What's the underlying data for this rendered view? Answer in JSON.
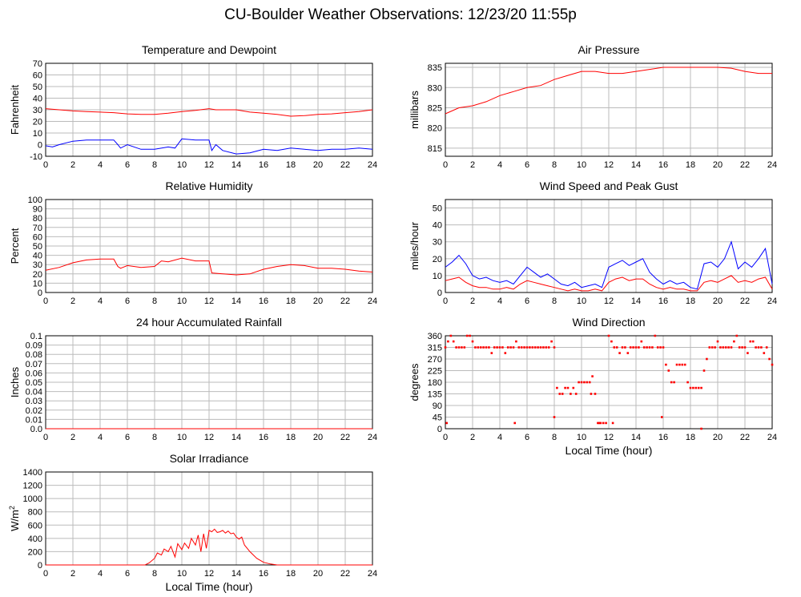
{
  "page": {
    "title": "CU-Boulder Weather Observations: 12/23/20 11:55p"
  },
  "chart_data": [
    {
      "id": "temperature",
      "type": "line",
      "title": "Temperature and Dewpoint",
      "xlabel": "",
      "ylabel": "Fahrenheit",
      "xlim": [
        0,
        24
      ],
      "ylim": [
        -10,
        70
      ],
      "xticks": [
        "0",
        "2",
        "4",
        "6",
        "8",
        "10",
        "12",
        "14",
        "16",
        "18",
        "20",
        "22",
        "24"
      ],
      "yticks": [
        "-10",
        "0",
        "10",
        "20",
        "30",
        "40",
        "50",
        "60",
        "70"
      ],
      "grid": true,
      "series": [
        {
          "color": "#ff0000",
          "x": [
            0,
            1,
            2,
            3,
            4,
            5,
            6,
            7,
            8,
            9,
            10,
            11,
            12,
            12.5,
            13,
            14,
            15,
            16,
            17,
            18,
            19,
            20,
            21,
            22,
            23,
            24
          ],
          "y": [
            31,
            30,
            29,
            28.5,
            28,
            27.5,
            26.5,
            26,
            26,
            27,
            28.5,
            29.5,
            31,
            30,
            30,
            30,
            28,
            27,
            26,
            24.5,
            25,
            26,
            26.5,
            27.5,
            28.5,
            30
          ]
        },
        {
          "color": "#0000ff",
          "x": [
            0,
            0.5,
            1,
            2,
            3,
            4,
            5,
            5.3,
            5.5,
            6,
            7,
            8,
            9,
            9.5,
            10,
            11,
            12,
            12.2,
            12.5,
            13,
            14,
            15,
            16,
            17,
            18,
            19,
            20,
            21,
            22,
            23,
            24
          ],
          "y": [
            -1,
            -2,
            0,
            3,
            4,
            4,
            4,
            0,
            -3,
            0,
            -4,
            -4,
            -2,
            -3,
            5,
            4,
            4,
            -5,
            0,
            -5,
            -8,
            -7,
            -4,
            -5,
            -3,
            -4,
            -5,
            -4,
            -4,
            -3,
            -4
          ]
        }
      ]
    },
    {
      "id": "pressure",
      "type": "line",
      "title": "Air Pressure",
      "xlabel": "",
      "ylabel": "millibars",
      "xlim": [
        0,
        24
      ],
      "ylim": [
        813,
        836
      ],
      "xticks": [
        "0",
        "2",
        "4",
        "6",
        "8",
        "10",
        "12",
        "14",
        "16",
        "18",
        "20",
        "22",
        "24"
      ],
      "yticks": [
        "815",
        "820",
        "825",
        "830",
        "835"
      ],
      "grid": true,
      "series": [
        {
          "color": "#ff0000",
          "x": [
            0,
            1,
            2,
            3,
            4,
            5,
            6,
            7,
            8,
            9,
            10,
            11,
            12,
            13,
            14,
            15,
            16,
            17,
            18,
            19,
            20,
            21,
            22,
            23,
            24
          ],
          "y": [
            823.5,
            825,
            825.5,
            826.5,
            828,
            829,
            830,
            830.5,
            832,
            833,
            834,
            834,
            833.5,
            833.5,
            834,
            834.5,
            835,
            835,
            835,
            835,
            835,
            834.8,
            834,
            833.5,
            833.5
          ]
        }
      ]
    },
    {
      "id": "humidity",
      "type": "line",
      "title": "Relative Humidity",
      "xlabel": "",
      "ylabel": "Percent",
      "xlim": [
        0,
        24
      ],
      "ylim": [
        0,
        100
      ],
      "xticks": [
        "0",
        "2",
        "4",
        "6",
        "8",
        "10",
        "12",
        "14",
        "16",
        "18",
        "20",
        "22",
        "24"
      ],
      "yticks": [
        "0",
        "10",
        "20",
        "30",
        "40",
        "50",
        "60",
        "70",
        "80",
        "90",
        "100"
      ],
      "grid": true,
      "series": [
        {
          "color": "#ff0000",
          "x": [
            0,
            1,
            2,
            3,
            4,
            5,
            5.3,
            5.5,
            6,
            7,
            8,
            8.5,
            9,
            10,
            11,
            12,
            12.2,
            13,
            14,
            15,
            16,
            17,
            18,
            19,
            20,
            21,
            22,
            23,
            24
          ],
          "y": [
            24,
            27,
            32,
            35,
            36,
            36,
            28,
            26,
            29,
            27,
            28,
            34,
            33,
            37,
            34,
            34,
            21,
            20,
            19,
            20,
            25,
            28,
            30,
            29,
            26,
            26,
            25,
            23,
            22
          ]
        }
      ]
    },
    {
      "id": "wind-speed",
      "type": "line",
      "title": "Wind Speed and Peak Gust",
      "xlabel": "",
      "ylabel": "miles/hour",
      "xlim": [
        0,
        24
      ],
      "ylim": [
        0,
        55
      ],
      "xticks": [
        "0",
        "2",
        "4",
        "6",
        "8",
        "10",
        "12",
        "14",
        "16",
        "18",
        "20",
        "22",
        "24"
      ],
      "yticks": [
        "0",
        "10",
        "20",
        "30",
        "40",
        "50"
      ],
      "grid": true,
      "series": [
        {
          "color": "#0000ff",
          "x": [
            0,
            0.5,
            1,
            1.5,
            2,
            2.5,
            3,
            3.5,
            4,
            4.5,
            5,
            5.5,
            6,
            6.5,
            7,
            7.5,
            8,
            8.5,
            9,
            9.5,
            10,
            10.5,
            11,
            11.5,
            12,
            12.5,
            13,
            13.5,
            14,
            14.5,
            15,
            15.5,
            16,
            16.5,
            17,
            17.5,
            18,
            18.5,
            19,
            19.5,
            20,
            20.5,
            21,
            21.5,
            22,
            22.5,
            23,
            23.5,
            24
          ],
          "y": [
            15,
            18,
            22,
            17,
            10,
            8,
            9,
            7,
            6,
            7,
            5,
            10,
            15,
            12,
            9,
            11,
            8,
            5,
            4,
            6,
            3,
            4,
            5,
            3,
            15,
            17,
            19,
            16,
            18,
            20,
            12,
            8,
            5,
            7,
            5,
            6,
            3,
            2,
            17,
            18,
            15,
            20,
            30,
            14,
            18,
            15,
            20,
            26,
            5
          ]
        },
        {
          "color": "#ff0000",
          "x": [
            0,
            0.5,
            1,
            1.5,
            2,
            2.5,
            3,
            3.5,
            4,
            4.5,
            5,
            5.5,
            6,
            6.5,
            7,
            7.5,
            8,
            8.5,
            9,
            9.5,
            10,
            10.5,
            11,
            11.5,
            12,
            12.5,
            13,
            13.5,
            14,
            14.5,
            15,
            15.5,
            16,
            16.5,
            17,
            17.5,
            18,
            18.5,
            19,
            19.5,
            20,
            20.5,
            21,
            21.5,
            22,
            22.5,
            23,
            23.5,
            24
          ],
          "y": [
            7,
            8,
            9,
            6,
            4,
            3,
            3,
            2,
            2,
            3,
            2,
            5,
            7,
            6,
            5,
            4,
            3,
            2,
            1,
            2,
            1,
            1,
            2,
            1,
            6,
            8,
            9,
            7,
            8,
            8,
            5,
            3,
            2,
            3,
            2,
            2,
            1,
            1,
            6,
            7,
            6,
            8,
            10,
            6,
            7,
            6,
            8,
            9,
            2
          ]
        }
      ]
    },
    {
      "id": "rainfall",
      "type": "line",
      "title": "24 hour Accumulated Rainfall",
      "xlabel": "",
      "ylabel": "Inches",
      "xlim": [
        0,
        24
      ],
      "ylim": [
        0,
        0.1
      ],
      "xticks": [
        "0",
        "2",
        "4",
        "6",
        "8",
        "10",
        "12",
        "14",
        "16",
        "18",
        "20",
        "22",
        "24"
      ],
      "yticks": [
        "0.0",
        "0.01",
        "0.02",
        "0.03",
        "0.04",
        "0.05",
        "0.06",
        "0.07",
        "0.08",
        "0.09",
        "0.1"
      ],
      "grid": true,
      "series": [
        {
          "color": "#ff0000",
          "x": [
            0,
            24
          ],
          "y": [
            0,
            0
          ]
        }
      ]
    },
    {
      "id": "wind-direction",
      "type": "scatter",
      "title": "Wind Direction",
      "xlabel": "Local Time (hour)",
      "ylabel": "degrees",
      "xlim": [
        0,
        24
      ],
      "ylim": [
        0,
        360
      ],
      "xticks": [
        "0",
        "2",
        "4",
        "6",
        "8",
        "10",
        "12",
        "14",
        "16",
        "18",
        "20",
        "22",
        "24"
      ],
      "yticks": [
        "0",
        "45",
        "90",
        "135",
        "180",
        "225",
        "270",
        "315",
        "360"
      ],
      "grid": true,
      "series": [
        {
          "color": "#ff0000",
          "x": [
            0,
            0.2,
            0.4,
            0.6,
            0.8,
            1,
            1.2,
            1.4,
            1.6,
            1.8,
            2,
            2.2,
            2.4,
            2.6,
            2.8,
            3,
            3.2,
            3.4,
            3.6,
            3.8,
            4,
            4.2,
            4.4,
            4.6,
            4.8,
            5,
            5.2,
            5.4,
            5.6,
            5.8,
            6,
            6.2,
            6.4,
            6.6,
            6.8,
            7,
            7.2,
            7.4,
            7.6,
            7.8,
            8,
            8.2,
            8.4,
            8.6,
            8.8,
            9,
            9.2,
            9.4,
            9.6,
            9.8,
            10,
            10.2,
            10.4,
            10.6,
            10.8,
            11,
            11.2,
            11.4,
            11.6,
            11.8,
            12,
            12.2,
            12.4,
            12.6,
            12.8,
            13,
            13.2,
            13.4,
            13.6,
            13.8,
            14,
            14.2,
            14.4,
            14.6,
            14.8,
            15,
            15.2,
            15.4,
            15.6,
            15.8,
            16,
            16.2,
            16.4,
            16.6,
            16.8,
            17,
            17.2,
            17.4,
            17.6,
            17.8,
            18,
            18.2,
            18.4,
            18.6,
            18.8,
            19,
            19.2,
            19.4,
            19.6,
            19.8,
            20,
            20.2,
            20.4,
            20.6,
            20.8,
            21,
            21.2,
            21.4,
            21.6,
            21.8,
            22,
            22.2,
            22.4,
            22.6,
            22.8,
            23,
            23.2,
            23.4,
            23.6,
            23.8,
            24,
            0.1,
            5.1,
            8.0,
            10.7,
            11.3,
            12.3,
            15.9,
            18.8
          ],
          "y": [
            315,
            338,
            360,
            338,
            315,
            315,
            315,
            315,
            360,
            360,
            338,
            315,
            315,
            315,
            315,
            315,
            315,
            293,
            315,
            315,
            315,
            315,
            293,
            315,
            315,
            315,
            338,
            315,
            315,
            315,
            315,
            315,
            315,
            315,
            315,
            315,
            315,
            315,
            315,
            338,
            315,
            158,
            135,
            135,
            158,
            158,
            135,
            158,
            135,
            180,
            180,
            180,
            180,
            180,
            203,
            135,
            22,
            22,
            22,
            22,
            360,
            338,
            315,
            315,
            293,
            315,
            315,
            293,
            315,
            315,
            315,
            315,
            338,
            315,
            315,
            315,
            315,
            360,
            315,
            315,
            315,
            248,
            225,
            180,
            180,
            248,
            248,
            248,
            248,
            180,
            158,
            158,
            158,
            158,
            158,
            225,
            270,
            315,
            315,
            315,
            338,
            315,
            315,
            315,
            315,
            315,
            338,
            360,
            315,
            315,
            315,
            293,
            338,
            338,
            315,
            315,
            315,
            293,
            315,
            270,
            248,
            22,
            22,
            45,
            135,
            22,
            22,
            45,
            0
          ]
        }
      ]
    },
    {
      "id": "solar",
      "type": "line",
      "title": "Solar Irradiance",
      "xlabel": "Local Time (hour)",
      "ylabel": "W/m",
      "ylabel_superscript": "2",
      "xlim": [
        0,
        24
      ],
      "ylim": [
        0,
        1400
      ],
      "xticks": [
        "0",
        "2",
        "4",
        "6",
        "8",
        "10",
        "12",
        "14",
        "16",
        "18",
        "20",
        "22",
        "24"
      ],
      "yticks": [
        "0",
        "200",
        "400",
        "600",
        "800",
        "1000",
        "1200",
        "1400"
      ],
      "grid": true,
      "series": [
        {
          "color": "#ff0000",
          "x": [
            0,
            7.3,
            7.6,
            8,
            8.2,
            8.5,
            8.7,
            9,
            9.2,
            9.5,
            9.7,
            10,
            10.2,
            10.5,
            10.7,
            11,
            11.2,
            11.4,
            11.6,
            11.8,
            12,
            12.2,
            12.4,
            12.6,
            12.8,
            13,
            13.2,
            13.4,
            13.6,
            13.8,
            14,
            14.2,
            14.4,
            14.6,
            15,
            15.5,
            16,
            16.5,
            17,
            24
          ],
          "y": [
            0,
            0,
            30,
            100,
            180,
            150,
            240,
            200,
            280,
            120,
            320,
            230,
            330,
            250,
            400,
            300,
            450,
            200,
            470,
            250,
            520,
            500,
            540,
            490,
            500,
            520,
            480,
            510,
            470,
            480,
            420,
            390,
            420,
            300,
            200,
            100,
            40,
            15,
            0,
            0
          ]
        }
      ]
    }
  ]
}
